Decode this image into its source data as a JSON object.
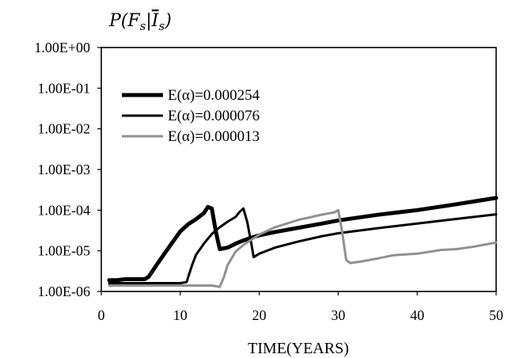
{
  "chart_data": {
    "type": "line",
    "title": "",
    "ylabel": "P(F_s|Ī_s)",
    "xlabel": "TIME(YEARS)",
    "xlim": [
      0,
      50
    ],
    "ylim": [
      1e-06,
      1
    ],
    "yscale": "log",
    "grid": false,
    "legend_position": "top-left",
    "x_ticks": [
      0,
      10,
      20,
      30,
      40,
      50
    ],
    "x_tick_labels": [
      "0",
      "10",
      "20",
      "30",
      "40",
      "50"
    ],
    "y_ticks": [
      1,
      0.1,
      0.01,
      0.001,
      0.0001,
      1e-05,
      1e-06
    ],
    "y_tick_labels": [
      "1.00E+00",
      "1.00E-01",
      "1.00E-02",
      "1.00E-03",
      "1.00E-04",
      "1.00E-05",
      "1.00E-06"
    ],
    "series": [
      {
        "name": "E(α)=0.000254",
        "color": "#000000",
        "style": "thick",
        "x": [
          1,
          2,
          3,
          4,
          5,
          5.5,
          6,
          7,
          8,
          9,
          10,
          11,
          12,
          13,
          13.5,
          14,
          14.5,
          15,
          16,
          17,
          18,
          19,
          20,
          22,
          25,
          28,
          30,
          35,
          40,
          45,
          50
        ],
        "y": [
          1.9e-06,
          1.9e-06,
          2e-06,
          2e-06,
          2e-06,
          2e-06,
          2.3e-06,
          4.5e-06,
          8.5e-06,
          1.6e-05,
          3e-05,
          4.5e-05,
          6e-05,
          8.5e-05,
          0.00012,
          0.00011,
          3e-05,
          1.1e-05,
          1.2e-05,
          1.5e-05,
          1.8e-05,
          2.1e-05,
          2.4e-05,
          2.9e-05,
          3.7e-05,
          4.7e-05,
          5.6e-05,
          7.7e-05,
          0.0001,
          0.00014,
          0.0002
        ]
      },
      {
        "name": "E(α)=0.000076",
        "color": "#000000",
        "style": "medium",
        "x": [
          1,
          5,
          8,
          10,
          10.8,
          11.5,
          12,
          13,
          14,
          15,
          16,
          17,
          17.5,
          18,
          18.5,
          19,
          19.3,
          20,
          22,
          25,
          28,
          30,
          35,
          40,
          45,
          50
        ],
        "y": [
          1.6e-06,
          1.6e-06,
          1.6e-06,
          1.6e-06,
          1.7e-06,
          4.5e-06,
          8e-06,
          1.5e-05,
          2.6e-05,
          3.8e-05,
          5.2e-05,
          6.8e-05,
          9e-05,
          0.00011,
          5e-05,
          1.5e-05,
          7e-06,
          8.5e-06,
          1.2e-05,
          1.7e-05,
          2.3e-05,
          2.7e-05,
          3.6e-05,
          4.7e-05,
          6.1e-05,
          7.9e-05
        ]
      },
      {
        "name": "E(α)=0.000013",
        "color": "#909090",
        "style": "medium",
        "x": [
          1,
          5,
          10,
          14,
          15,
          15.5,
          16,
          17,
          18,
          20,
          22,
          25,
          28,
          29.5,
          30,
          30.5,
          31,
          31.5,
          33,
          35,
          37,
          40,
          43,
          45,
          47,
          50
        ],
        "y": [
          1.4e-06,
          1.4e-06,
          1.4e-06,
          1.4e-06,
          1.3e-06,
          2.2e-06,
          4.5e-06,
          9.5e-06,
          1.4e-05,
          2.5e-05,
          3.8e-05,
          5.8e-05,
          7.8e-05,
          8.8e-05,
          0.0001,
          3e-05,
          6e-06,
          5e-06,
          5.5e-06,
          6.5e-06,
          7.8e-06,
          8.5e-06,
          1.05e-05,
          1.1e-05,
          1.25e-05,
          1.6e-05
        ]
      }
    ]
  }
}
